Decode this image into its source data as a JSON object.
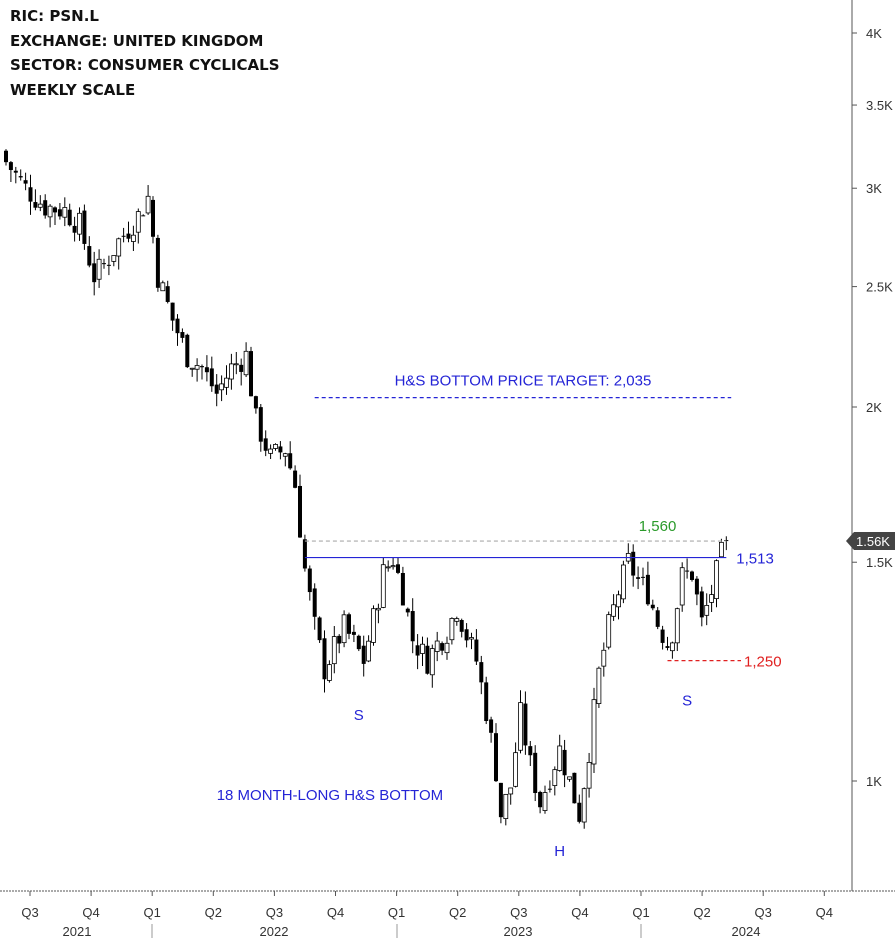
{
  "info": {
    "ric": "RIC:  PSN.L",
    "exchange": "EXCHANGE:  UNITED KINGDOM",
    "sector": "SECTOR:  CONSUMER CYCLICALS",
    "scale": "WEEKLY SCALE"
  },
  "colors": {
    "candle": "#000000",
    "neckline": "#2424d6",
    "annotation": "#2424d6",
    "target": "#2424d6",
    "resistance_label": "#2a9a2a",
    "support_label": "#e02020",
    "price_badge": "#444444"
  },
  "chart_data": {
    "type": "candlestick",
    "y_scale": "log",
    "ylim": [
      830,
      4300
    ],
    "y_ticks": [
      {
        "value": 1000,
        "label": "1K"
      },
      {
        "value": 1500,
        "label": "1.5K"
      },
      {
        "value": 2000,
        "label": "2K"
      },
      {
        "value": 2500,
        "label": "2.5K"
      },
      {
        "value": 3000,
        "label": "3K"
      },
      {
        "value": 3500,
        "label": "3.5K"
      },
      {
        "value": 4000,
        "label": "4K"
      }
    ],
    "x_quarters": [
      "Q3",
      "Q4",
      "Q1",
      "Q2",
      "Q3",
      "Q4",
      "Q1",
      "Q2",
      "Q3",
      "Q4",
      "Q1",
      "Q2",
      "Q3",
      "Q4"
    ],
    "x_years": [
      "2021",
      "2022",
      "2023",
      "2024"
    ],
    "last_price_label": "1.56K",
    "close_path": [
      [
        0,
        3150
      ],
      [
        4,
        3000
      ],
      [
        8,
        2900
      ],
      [
        12,
        2880
      ],
      [
        15,
        2800
      ],
      [
        18,
        2550
      ],
      [
        20,
        2600
      ],
      [
        23,
        2720
      ],
      [
        27,
        2850
      ],
      [
        29,
        2950
      ],
      [
        31,
        2550
      ],
      [
        34,
        2350
      ],
      [
        37,
        2200
      ],
      [
        40,
        2150
      ],
      [
        43,
        2050
      ],
      [
        46,
        2150
      ],
      [
        49,
        2200
      ],
      [
        51,
        1950
      ],
      [
        54,
        1820
      ],
      [
        57,
        1850
      ],
      [
        59,
        1730
      ],
      [
        61,
        1480
      ],
      [
        63,
        1330
      ],
      [
        65,
        1230
      ],
      [
        67,
        1280
      ],
      [
        69,
        1330
      ],
      [
        71,
        1290
      ],
      [
        73,
        1250
      ],
      [
        75,
        1350
      ],
      [
        77,
        1470
      ],
      [
        79,
        1510
      ],
      [
        81,
        1420
      ],
      [
        83,
        1300
      ],
      [
        86,
        1250
      ],
      [
        88,
        1290
      ],
      [
        90,
        1320
      ],
      [
        92,
        1380
      ],
      [
        94,
        1310
      ],
      [
        96,
        1250
      ],
      [
        98,
        1140
      ],
      [
        100,
        1020
      ],
      [
        101,
        940
      ],
      [
        103,
        990
      ],
      [
        105,
        1130
      ],
      [
        107,
        1030
      ],
      [
        109,
        960
      ],
      [
        111,
        1010
      ],
      [
        113,
        1060
      ],
      [
        115,
        1000
      ],
      [
        117,
        940
      ],
      [
        119,
        1060
      ],
      [
        121,
        1220
      ],
      [
        123,
        1330
      ],
      [
        125,
        1420
      ],
      [
        127,
        1500
      ],
      [
        129,
        1450
      ],
      [
        131,
        1420
      ],
      [
        133,
        1340
      ],
      [
        135,
        1290
      ],
      [
        136,
        1320
      ],
      [
        138,
        1460
      ],
      [
        140,
        1470
      ],
      [
        142,
        1340
      ],
      [
        144,
        1420
      ],
      [
        146,
        1520
      ],
      [
        147,
        1560
      ]
    ],
    "neckline": {
      "value": 1513,
      "label": "1,513",
      "x_range": [
        61,
        147
      ]
    },
    "resistance": {
      "value": 1560,
      "label": "1,560",
      "x_range": [
        61,
        147
      ]
    },
    "support": {
      "value": 1250,
      "label": "1,250",
      "x_range": [
        135,
        150
      ]
    },
    "price_target": {
      "value": 2035,
      "label": "H&S BOTTOM PRICE TARGET: 2,035",
      "x_range": [
        63,
        148
      ]
    },
    "annotations": [
      {
        "text": "S",
        "x": 72,
        "value": 1120
      },
      {
        "text": "H",
        "x": 113,
        "value": 870
      },
      {
        "text": "S",
        "x": 139,
        "value": 1150
      },
      {
        "text": "18 MONTH-LONG H&S BOTTOM",
        "x": 43,
        "value": 965
      }
    ]
  }
}
